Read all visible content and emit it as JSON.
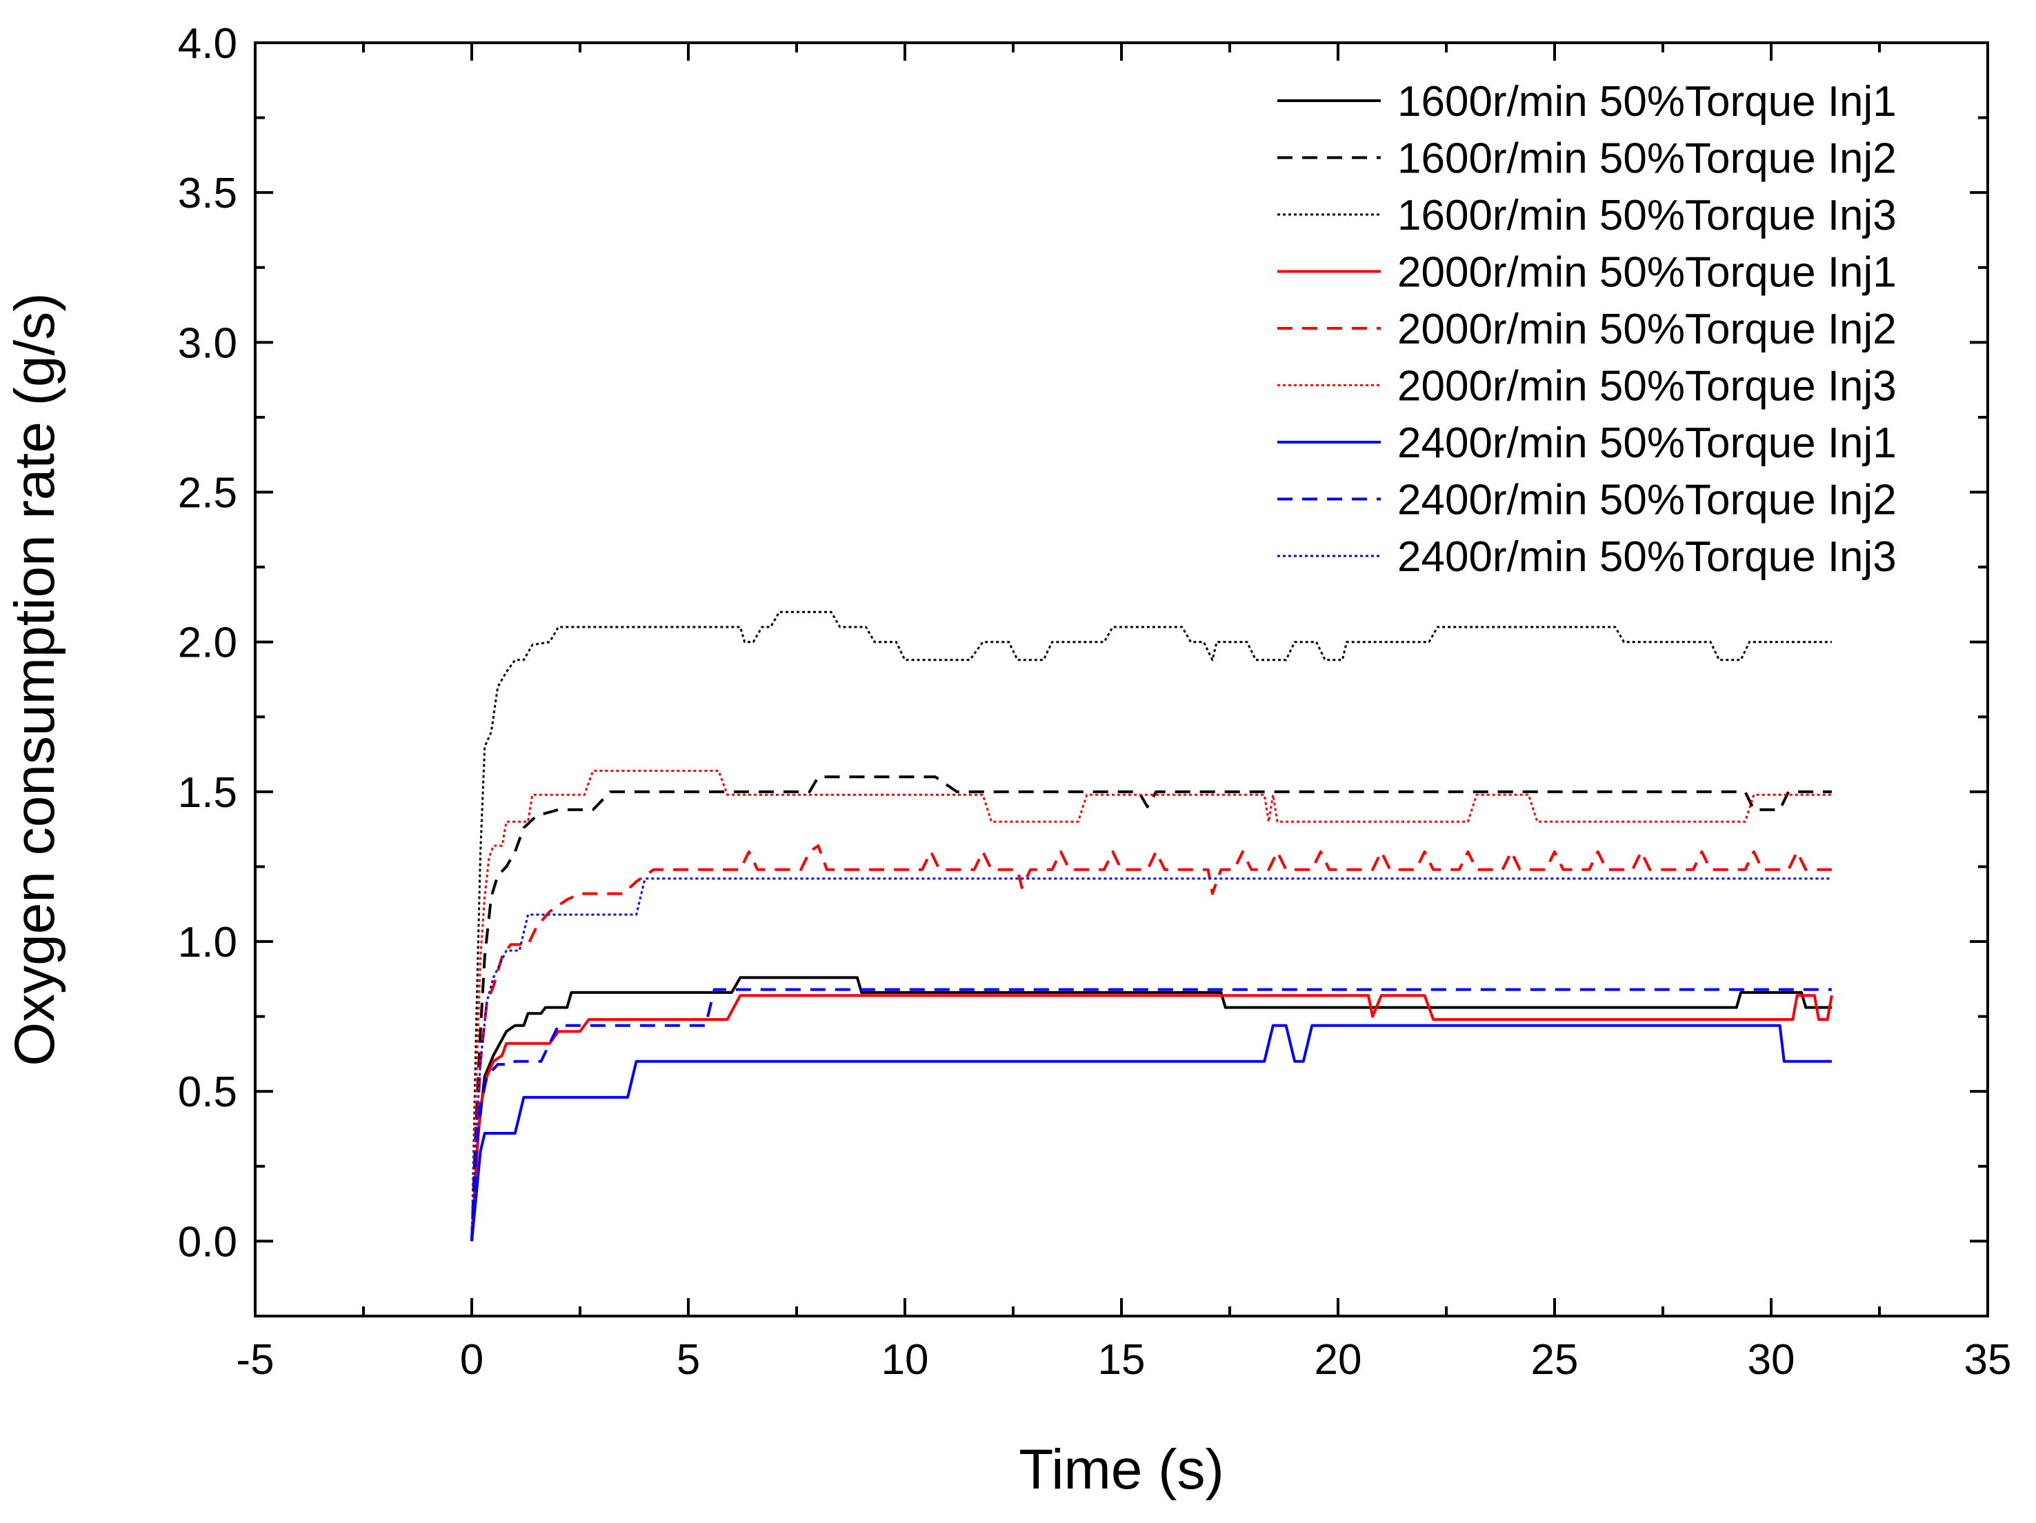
{
  "chart_data": {
    "type": "line",
    "title": "",
    "xlabel": "Time (s)",
    "ylabel": "Oxygen consumption rate (g/s)",
    "xlim": [
      -5,
      35
    ],
    "ylim": [
      -0.25,
      4.0
    ],
    "xticks": [
      -5,
      0,
      5,
      10,
      15,
      20,
      25,
      30,
      35
    ],
    "yticks": [
      0.0,
      0.5,
      1.0,
      1.5,
      2.0,
      2.5,
      3.0,
      3.5,
      4.0
    ],
    "xtick_labels": [
      "-5",
      "0",
      "5",
      "10",
      "15",
      "20",
      "25",
      "30",
      "35"
    ],
    "ytick_labels": [
      "0.0",
      "0.5",
      "1.0",
      "1.5",
      "2.0",
      "2.5",
      "3.0",
      "3.5",
      "4.0"
    ],
    "grid": false,
    "legend_position": "top-right",
    "series": [
      {
        "name": "1600r/min 50%Torque Inj1",
        "color": "#000000",
        "dash": "solid",
        "points": [
          [
            0,
            0
          ],
          [
            0.15,
            0.36
          ],
          [
            0.3,
            0.55
          ],
          [
            0.5,
            0.62
          ],
          [
            0.8,
            0.7
          ],
          [
            1.0,
            0.72
          ],
          [
            1.2,
            0.72
          ],
          [
            1.3,
            0.76
          ],
          [
            1.6,
            0.76
          ],
          [
            1.7,
            0.78
          ],
          [
            2.2,
            0.78
          ],
          [
            2.3,
            0.83
          ],
          [
            6.0,
            0.83
          ],
          [
            6.2,
            0.88
          ],
          [
            8.9,
            0.88
          ],
          [
            9.0,
            0.83
          ],
          [
            17.3,
            0.83
          ],
          [
            17.4,
            0.78
          ],
          [
            29.2,
            0.78
          ],
          [
            29.3,
            0.83
          ],
          [
            30.7,
            0.83
          ],
          [
            30.8,
            0.78
          ],
          [
            31.4,
            0.78
          ]
        ]
      },
      {
        "name": "1600r/min 50%Torque Inj2",
        "color": "#000000",
        "dash": "dashed",
        "points": [
          [
            0,
            0
          ],
          [
            0.1,
            0.4
          ],
          [
            0.2,
            0.7
          ],
          [
            0.3,
            0.95
          ],
          [
            0.45,
            1.15
          ],
          [
            0.6,
            1.22
          ],
          [
            0.8,
            1.25
          ],
          [
            1.0,
            1.3
          ],
          [
            1.2,
            1.38
          ],
          [
            1.5,
            1.42
          ],
          [
            2.0,
            1.44
          ],
          [
            2.8,
            1.44
          ],
          [
            3.2,
            1.5
          ],
          [
            7.8,
            1.5
          ],
          [
            8.0,
            1.55
          ],
          [
            10.7,
            1.55
          ],
          [
            11.2,
            1.5
          ],
          [
            15.4,
            1.5
          ],
          [
            15.6,
            1.45
          ],
          [
            15.8,
            1.5
          ],
          [
            29.4,
            1.5
          ],
          [
            29.6,
            1.44
          ],
          [
            30.2,
            1.44
          ],
          [
            30.4,
            1.5
          ],
          [
            31.4,
            1.5
          ]
        ]
      },
      {
        "name": "1600r/min 50%Torque Inj3",
        "color": "#000000",
        "dash": "dotted",
        "points": [
          [
            0,
            0
          ],
          [
            0.1,
            0.7
          ],
          [
            0.2,
            1.3
          ],
          [
            0.3,
            1.65
          ],
          [
            0.45,
            1.7
          ],
          [
            0.6,
            1.85
          ],
          [
            0.8,
            1.9
          ],
          [
            1.0,
            1.94
          ],
          [
            1.2,
            1.94
          ],
          [
            1.4,
            1.99
          ],
          [
            1.8,
            2.0
          ],
          [
            2.0,
            2.05
          ],
          [
            6.2,
            2.05
          ],
          [
            6.3,
            2.0
          ],
          [
            6.5,
            2.0
          ],
          [
            6.7,
            2.05
          ],
          [
            6.9,
            2.05
          ],
          [
            7.1,
            2.1
          ],
          [
            8.3,
            2.1
          ],
          [
            8.5,
            2.05
          ],
          [
            9.1,
            2.05
          ],
          [
            9.3,
            2.0
          ],
          [
            9.8,
            2.0
          ],
          [
            10.0,
            1.94
          ],
          [
            11.5,
            1.94
          ],
          [
            11.8,
            2.0
          ],
          [
            12.4,
            2.0
          ],
          [
            12.6,
            1.94
          ],
          [
            13.2,
            1.94
          ],
          [
            13.4,
            2.0
          ],
          [
            14.6,
            2.0
          ],
          [
            14.8,
            2.05
          ],
          [
            16.4,
            2.05
          ],
          [
            16.6,
            2.0
          ],
          [
            16.9,
            2.0
          ],
          [
            17.1,
            1.94
          ],
          [
            17.2,
            2.0
          ],
          [
            17.9,
            2.0
          ],
          [
            18.1,
            1.94
          ],
          [
            18.8,
            1.94
          ],
          [
            19.0,
            2.0
          ],
          [
            19.5,
            2.0
          ],
          [
            19.7,
            1.94
          ],
          [
            20.1,
            1.94
          ],
          [
            20.2,
            2.0
          ],
          [
            22.1,
            2.0
          ],
          [
            22.3,
            2.05
          ],
          [
            26.4,
            2.05
          ],
          [
            26.6,
            2.0
          ],
          [
            28.6,
            2.0
          ],
          [
            28.8,
            1.94
          ],
          [
            29.3,
            1.94
          ],
          [
            29.5,
            2.0
          ],
          [
            31.4,
            2.0
          ]
        ]
      },
      {
        "name": "2000r/min 50%Torque Inj1",
        "color": "#ff0000",
        "dash": "solid",
        "points": [
          [
            0,
            0
          ],
          [
            0.1,
            0.25
          ],
          [
            0.2,
            0.45
          ],
          [
            0.35,
            0.55
          ],
          [
            0.5,
            0.6
          ],
          [
            0.7,
            0.62
          ],
          [
            0.8,
            0.66
          ],
          [
            1.8,
            0.66
          ],
          [
            2.0,
            0.7
          ],
          [
            2.5,
            0.7
          ],
          [
            2.7,
            0.74
          ],
          [
            5.9,
            0.74
          ],
          [
            6.2,
            0.82
          ],
          [
            20.7,
            0.82
          ],
          [
            20.8,
            0.75
          ],
          [
            21.0,
            0.82
          ],
          [
            22.0,
            0.82
          ],
          [
            22.2,
            0.74
          ],
          [
            30.5,
            0.74
          ],
          [
            30.6,
            0.82
          ],
          [
            31.0,
            0.82
          ],
          [
            31.1,
            0.74
          ],
          [
            31.3,
            0.74
          ],
          [
            31.4,
            0.82
          ]
        ]
      },
      {
        "name": "2000r/min 50%Torque Inj2",
        "color": "#ff0000",
        "dash": "dashed",
        "points": [
          [
            0,
            0
          ],
          [
            0.1,
            0.3
          ],
          [
            0.2,
            0.6
          ],
          [
            0.35,
            0.8
          ],
          [
            0.5,
            0.85
          ],
          [
            0.7,
            0.95
          ],
          [
            0.9,
            0.99
          ],
          [
            1.3,
            0.99
          ],
          [
            1.5,
            1.05
          ],
          [
            1.8,
            1.1
          ],
          [
            2.2,
            1.14
          ],
          [
            2.5,
            1.16
          ],
          [
            3.5,
            1.16
          ],
          [
            3.8,
            1.2
          ],
          [
            4.2,
            1.24
          ],
          [
            6.2,
            1.24
          ],
          [
            6.4,
            1.3
          ],
          [
            6.6,
            1.24
          ],
          [
            7.6,
            1.24
          ],
          [
            7.8,
            1.3
          ],
          [
            8.0,
            1.32
          ],
          [
            8.2,
            1.24
          ],
          [
            10.4,
            1.24
          ],
          [
            10.6,
            1.3
          ],
          [
            10.8,
            1.24
          ],
          [
            11.6,
            1.24
          ],
          [
            11.8,
            1.3
          ],
          [
            12.0,
            1.24
          ],
          [
            12.6,
            1.24
          ],
          [
            12.7,
            1.18
          ],
          [
            12.9,
            1.24
          ],
          [
            13.4,
            1.24
          ],
          [
            13.6,
            1.3
          ],
          [
            13.8,
            1.24
          ],
          [
            14.6,
            1.24
          ],
          [
            14.8,
            1.3
          ],
          [
            15.0,
            1.24
          ],
          [
            15.6,
            1.24
          ],
          [
            15.8,
            1.3
          ],
          [
            16.0,
            1.24
          ],
          [
            17.0,
            1.24
          ],
          [
            17.1,
            1.16
          ],
          [
            17.3,
            1.24
          ],
          [
            17.6,
            1.24
          ],
          [
            17.8,
            1.3
          ],
          [
            18.0,
            1.24
          ],
          [
            18.4,
            1.24
          ],
          [
            18.6,
            1.3
          ],
          [
            18.8,
            1.24
          ],
          [
            19.4,
            1.24
          ],
          [
            19.6,
            1.3
          ],
          [
            19.8,
            1.24
          ],
          [
            20.8,
            1.24
          ],
          [
            21.0,
            1.3
          ],
          [
            21.2,
            1.24
          ],
          [
            21.8,
            1.24
          ],
          [
            22.0,
            1.3
          ],
          [
            22.2,
            1.24
          ],
          [
            22.8,
            1.24
          ],
          [
            23.0,
            1.3
          ],
          [
            23.2,
            1.24
          ],
          [
            23.8,
            1.24
          ],
          [
            24.0,
            1.3
          ],
          [
            24.2,
            1.24
          ],
          [
            24.8,
            1.24
          ],
          [
            25.0,
            1.3
          ],
          [
            25.2,
            1.24
          ],
          [
            25.8,
            1.24
          ],
          [
            26.0,
            1.3
          ],
          [
            26.2,
            1.24
          ],
          [
            26.8,
            1.24
          ],
          [
            27.0,
            1.3
          ],
          [
            27.2,
            1.24
          ],
          [
            28.2,
            1.24
          ],
          [
            28.4,
            1.3
          ],
          [
            28.6,
            1.24
          ],
          [
            29.4,
            1.24
          ],
          [
            29.6,
            1.3
          ],
          [
            29.8,
            1.24
          ],
          [
            30.4,
            1.24
          ],
          [
            30.6,
            1.3
          ],
          [
            30.8,
            1.24
          ],
          [
            31.4,
            1.24
          ]
        ]
      },
      {
        "name": "2000r/min 50%Torque Inj3",
        "color": "#ff0000",
        "dash": "dotted",
        "points": [
          [
            0,
            0
          ],
          [
            0.1,
            0.5
          ],
          [
            0.2,
            0.95
          ],
          [
            0.3,
            1.15
          ],
          [
            0.4,
            1.28
          ],
          [
            0.5,
            1.32
          ],
          [
            0.7,
            1.32
          ],
          [
            0.8,
            1.4
          ],
          [
            1.3,
            1.4
          ],
          [
            1.4,
            1.49
          ],
          [
            2.6,
            1.49
          ],
          [
            2.8,
            1.57
          ],
          [
            5.7,
            1.57
          ],
          [
            5.9,
            1.49
          ],
          [
            11.8,
            1.49
          ],
          [
            12.0,
            1.4
          ],
          [
            14.0,
            1.4
          ],
          [
            14.2,
            1.49
          ],
          [
            18.3,
            1.49
          ],
          [
            18.4,
            1.4
          ],
          [
            18.5,
            1.49
          ],
          [
            18.6,
            1.4
          ],
          [
            23.0,
            1.4
          ],
          [
            23.2,
            1.49
          ],
          [
            24.4,
            1.49
          ],
          [
            24.6,
            1.4
          ],
          [
            29.4,
            1.4
          ],
          [
            29.6,
            1.49
          ],
          [
            31.4,
            1.49
          ]
        ]
      },
      {
        "name": "2400r/min 50%Torque Inj1",
        "color": "#0000ff",
        "dash": "solid",
        "points": [
          [
            0,
            0
          ],
          [
            0.1,
            0.15
          ],
          [
            0.2,
            0.3
          ],
          [
            0.3,
            0.36
          ],
          [
            1.0,
            0.36
          ],
          [
            1.2,
            0.48
          ],
          [
            3.6,
            0.48
          ],
          [
            3.8,
            0.6
          ],
          [
            18.3,
            0.6
          ],
          [
            18.5,
            0.72
          ],
          [
            18.8,
            0.72
          ],
          [
            19.0,
            0.6
          ],
          [
            19.2,
            0.6
          ],
          [
            19.4,
            0.72
          ],
          [
            30.2,
            0.72
          ],
          [
            30.3,
            0.6
          ],
          [
            31.4,
            0.6
          ]
        ]
      },
      {
        "name": "2400r/min 50%Torque Inj2",
        "color": "#0000ff",
        "dash": "dashed",
        "points": [
          [
            0,
            0
          ],
          [
            0.1,
            0.3
          ],
          [
            0.2,
            0.45
          ],
          [
            0.35,
            0.55
          ],
          [
            0.6,
            0.59
          ],
          [
            0.9,
            0.59
          ],
          [
            1.0,
            0.6
          ],
          [
            1.6,
            0.6
          ],
          [
            1.8,
            0.66
          ],
          [
            2.0,
            0.72
          ],
          [
            5.4,
            0.72
          ],
          [
            5.6,
            0.84
          ],
          [
            31.4,
            0.84
          ]
        ]
      },
      {
        "name": "2400r/min 50%Torque Inj3",
        "color": "#0000ff",
        "dash": "dotted",
        "points": [
          [
            0,
            0
          ],
          [
            0.1,
            0.35
          ],
          [
            0.2,
            0.6
          ],
          [
            0.35,
            0.8
          ],
          [
            0.5,
            0.88
          ],
          [
            0.8,
            0.97
          ],
          [
            1.1,
            0.97
          ],
          [
            1.3,
            1.09
          ],
          [
            3.8,
            1.09
          ],
          [
            4.0,
            1.21
          ],
          [
            31.4,
            1.21
          ]
        ]
      }
    ]
  }
}
